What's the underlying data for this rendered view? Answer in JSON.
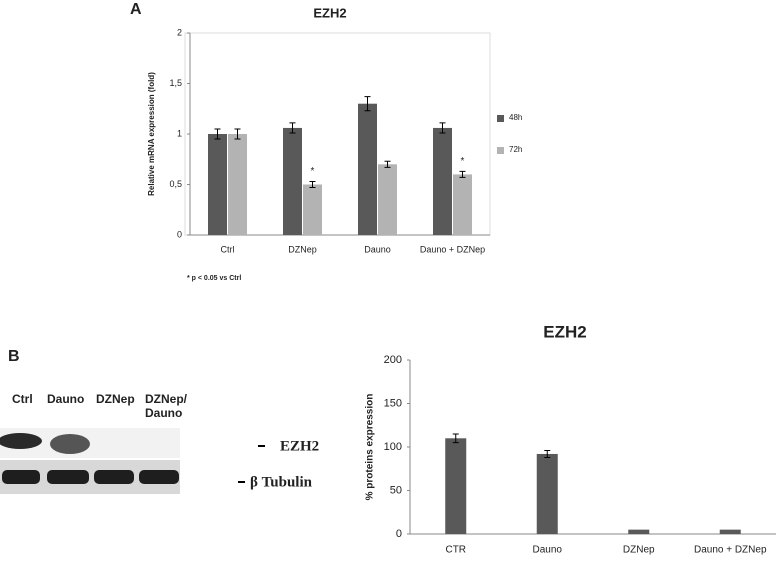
{
  "panel_labels": [
    "A",
    "B"
  ],
  "blot": {
    "lanes": [
      "Ctrl",
      "Dauno",
      "DZNep",
      "DZNep/",
      "Dauno"
    ],
    "bands": [
      "EZH2",
      "β Tubulin"
    ]
  },
  "chart_data": [
    {
      "type": "bar",
      "title": "EZH2",
      "ylabel": "Relative mRNA expression (fold)",
      "categories": [
        "Ctrl",
        "DZNep",
        "Dauno",
        "Dauno + DZNep"
      ],
      "series": [
        {
          "name": "48h",
          "color": "#595959",
          "values": [
            1.0,
            1.06,
            1.3,
            1.06
          ],
          "errors": [
            0.05,
            0.05,
            0.07,
            0.05
          ]
        },
        {
          "name": "72h",
          "color": "#b3b3b3",
          "values": [
            1.0,
            0.5,
            0.7,
            0.6
          ],
          "errors": [
            0.05,
            0.03,
            0.03,
            0.03
          ],
          "significance": [
            null,
            "*",
            null,
            "*"
          ]
        }
      ],
      "ylim": [
        0,
        2
      ],
      "yticks": [
        0,
        {
          "value": 0.5,
          "label": "0,5"
        },
        1,
        {
          "value": 1.5,
          "label": "1,5"
        },
        2
      ],
      "grid": false,
      "legend": "right",
      "footnote": "* p < 0.05 vs Ctrl"
    },
    {
      "type": "bar",
      "title": "EZH2",
      "ylabel": "% proteins expression",
      "categories": [
        "CTR",
        "Dauno",
        "DZNep",
        "Dauno + DZNep"
      ],
      "values": [
        110,
        92,
        5,
        5
      ],
      "errors": [
        5,
        4,
        null,
        null
      ],
      "color": "#595959",
      "ylim": [
        0,
        200
      ],
      "yticks": [
        0,
        50,
        100,
        150,
        200
      ],
      "grid": false
    }
  ]
}
